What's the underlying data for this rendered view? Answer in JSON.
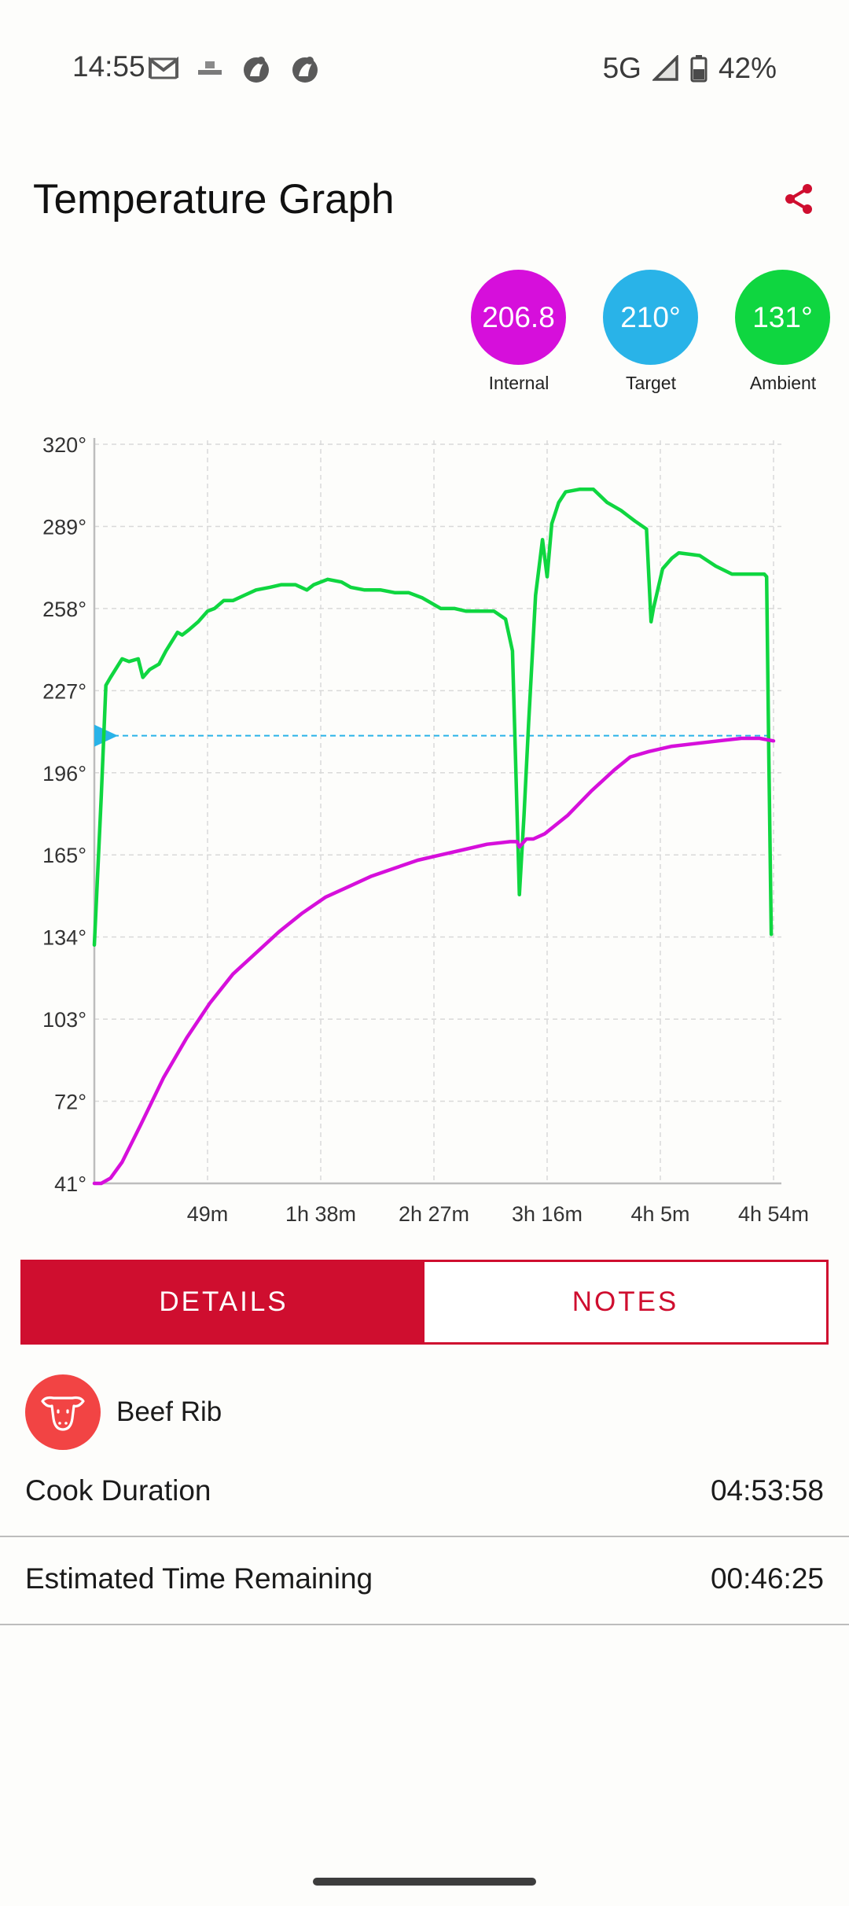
{
  "status_bar": {
    "time": "14:55",
    "network": "5G",
    "battery": "42%"
  },
  "header": {
    "title": "Temperature Graph"
  },
  "readings": [
    {
      "value": "206.8",
      "label": "Internal",
      "color": "#d60fdb"
    },
    {
      "value": "210°",
      "label": "Target",
      "color": "#29b3e8"
    },
    {
      "value": "131°",
      "label": "Ambient",
      "color": "#0fd640"
    }
  ],
  "tabs": [
    {
      "label": "DETAILS",
      "active": true
    },
    {
      "label": "NOTES",
      "active": false
    }
  ],
  "food": {
    "name": "Beef Rib",
    "icon": "cow-icon"
  },
  "details": [
    {
      "label": "Cook Duration",
      "value": "04:53:58"
    },
    {
      "label": "Estimated Time Remaining",
      "value": "00:46:25"
    }
  ],
  "chart_data": {
    "type": "line",
    "x_unit": "minutes",
    "xlim": [
      0,
      294
    ],
    "x_ticks": [
      {
        "x": 49,
        "label": "49m"
      },
      {
        "x": 98,
        "label": "1h 38m"
      },
      {
        "x": 147,
        "label": "2h 27m"
      },
      {
        "x": 196,
        "label": "3h 16m"
      },
      {
        "x": 245,
        "label": "4h 5m"
      },
      {
        "x": 294,
        "label": "4h 54m"
      }
    ],
    "ylim": [
      41,
      320
    ],
    "y_ticks": [
      "41°",
      "72°",
      "103°",
      "134°",
      "165°",
      "196°",
      "227°",
      "258°",
      "289°",
      "320°"
    ],
    "grid": true,
    "target": {
      "value": 210,
      "color": "#29b3e8"
    },
    "series": [
      {
        "color": "#0fd640",
        "points": [
          [
            0,
            131
          ],
          [
            3,
            187
          ],
          [
            5,
            229
          ],
          [
            7,
            232
          ],
          [
            12,
            239
          ],
          [
            15,
            238
          ],
          [
            19,
            239
          ],
          [
            21,
            232
          ],
          [
            24,
            235
          ],
          [
            28,
            237
          ],
          [
            31,
            242
          ],
          [
            36,
            249
          ],
          [
            38,
            248
          ],
          [
            41,
            250
          ],
          [
            45,
            253
          ],
          [
            49,
            257
          ],
          [
            52,
            258
          ],
          [
            56,
            261
          ],
          [
            60,
            261
          ],
          [
            65,
            263
          ],
          [
            70,
            265
          ],
          [
            76,
            266
          ],
          [
            81,
            267
          ],
          [
            87,
            267
          ],
          [
            92,
            265
          ],
          [
            95,
            267
          ],
          [
            101,
            269
          ],
          [
            107,
            268
          ],
          [
            111,
            266
          ],
          [
            117,
            265
          ],
          [
            124,
            265
          ],
          [
            130,
            264
          ],
          [
            136,
            264
          ],
          [
            142,
            262
          ],
          [
            150,
            258
          ],
          [
            156,
            258
          ],
          [
            161,
            257
          ],
          [
            170,
            257
          ],
          [
            173,
            257
          ],
          [
            178,
            254
          ],
          [
            181,
            242
          ],
          [
            184,
            150
          ],
          [
            186,
            180
          ],
          [
            188,
            215
          ],
          [
            191,
            263
          ],
          [
            194,
            284
          ],
          [
            196,
            270
          ],
          [
            198,
            290
          ],
          [
            201,
            298
          ],
          [
            204,
            302
          ],
          [
            210,
            303
          ],
          [
            216,
            303
          ],
          [
            222,
            298
          ],
          [
            228,
            295
          ],
          [
            231,
            293
          ],
          [
            234,
            291
          ],
          [
            239,
            288
          ],
          [
            241,
            253
          ],
          [
            242,
            258
          ],
          [
            246,
            273
          ],
          [
            250,
            277
          ],
          [
            253,
            279
          ],
          [
            262,
            278
          ],
          [
            269,
            274
          ],
          [
            276,
            271
          ],
          [
            285,
            271
          ],
          [
            290,
            271
          ],
          [
            291,
            270
          ],
          [
            292,
            200
          ],
          [
            293,
            135
          ]
        ]
      },
      {
        "color": "#d60fdb",
        "points": [
          [
            0,
            41
          ],
          [
            3,
            41
          ],
          [
            7,
            43
          ],
          [
            12,
            49
          ],
          [
            20,
            63
          ],
          [
            30,
            81
          ],
          [
            40,
            96
          ],
          [
            50,
            109
          ],
          [
            60,
            120
          ],
          [
            70,
            128
          ],
          [
            80,
            136
          ],
          [
            90,
            143
          ],
          [
            100,
            149
          ],
          [
            110,
            153
          ],
          [
            120,
            157
          ],
          [
            130,
            160
          ],
          [
            140,
            163
          ],
          [
            150,
            165
          ],
          [
            160,
            167
          ],
          [
            170,
            169
          ],
          [
            180,
            170
          ],
          [
            183,
            170
          ],
          [
            184,
            168
          ],
          [
            187,
            171
          ],
          [
            190,
            171
          ],
          [
            195,
            173
          ],
          [
            205,
            180
          ],
          [
            215,
            189
          ],
          [
            225,
            197
          ],
          [
            232,
            202
          ],
          [
            240,
            204
          ],
          [
            250,
            206
          ],
          [
            260,
            207
          ],
          [
            270,
            208
          ],
          [
            280,
            209
          ],
          [
            288,
            209
          ],
          [
            294,
            208
          ]
        ]
      }
    ]
  }
}
